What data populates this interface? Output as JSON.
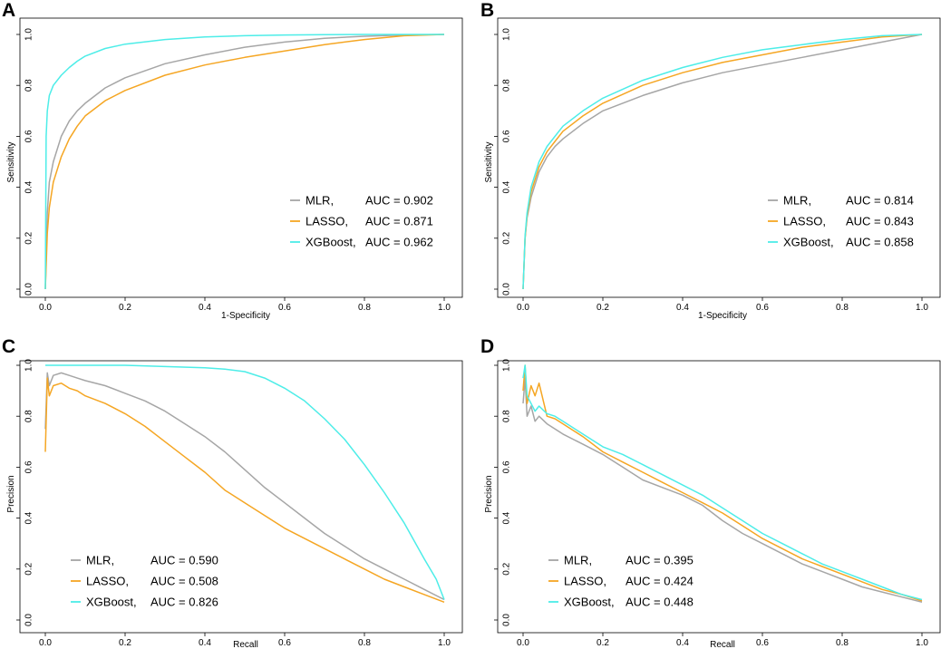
{
  "colors": {
    "MLR": "#a6a6a6",
    "LASSO": "#f5a623",
    "XGBoost": "#4dede8"
  },
  "chart_data": [
    {
      "panel": "A",
      "type": "line",
      "xlabel": "1-Specificity",
      "ylabel": "Sensitivity",
      "xlim": [
        0,
        1
      ],
      "ylim": [
        0,
        1
      ],
      "xticks": [
        "0.0",
        "0.2",
        "0.4",
        "0.6",
        "0.8",
        "1.0"
      ],
      "yticks": [
        "0.0",
        "0.2",
        "0.4",
        "0.6",
        "0.8",
        "1.0"
      ],
      "legend_position": "bottom-right",
      "series": [
        {
          "name": "MLR",
          "legend": "MLR,",
          "auc": "AUC = 0.902",
          "x": [
            0,
            0.005,
            0.01,
            0.02,
            0.04,
            0.06,
            0.08,
            0.1,
            0.15,
            0.2,
            0.3,
            0.4,
            0.5,
            0.6,
            0.7,
            0.8,
            0.9,
            1.0
          ],
          "y": [
            0,
            0.3,
            0.42,
            0.5,
            0.6,
            0.66,
            0.7,
            0.73,
            0.79,
            0.83,
            0.885,
            0.92,
            0.95,
            0.97,
            0.985,
            0.993,
            0.998,
            1.0
          ]
        },
        {
          "name": "LASSO",
          "legend": "LASSO,",
          "auc": "AUC = 0.871",
          "x": [
            0,
            0.005,
            0.01,
            0.02,
            0.04,
            0.06,
            0.08,
            0.1,
            0.15,
            0.2,
            0.3,
            0.4,
            0.5,
            0.6,
            0.7,
            0.8,
            0.9,
            1.0
          ],
          "y": [
            0,
            0.22,
            0.32,
            0.42,
            0.52,
            0.59,
            0.64,
            0.68,
            0.74,
            0.78,
            0.84,
            0.88,
            0.91,
            0.935,
            0.96,
            0.98,
            0.995,
            1.0
          ]
        },
        {
          "name": "XGBoost",
          "legend": "XGBoost,",
          "auc": "AUC = 0.962",
          "x": [
            0,
            0.002,
            0.005,
            0.01,
            0.02,
            0.04,
            0.06,
            0.08,
            0.1,
            0.15,
            0.2,
            0.3,
            0.4,
            0.5,
            0.6,
            0.7,
            0.8,
            0.9,
            1.0
          ],
          "y": [
            0,
            0.6,
            0.7,
            0.76,
            0.8,
            0.84,
            0.87,
            0.895,
            0.915,
            0.945,
            0.962,
            0.98,
            0.99,
            0.995,
            0.998,
            0.999,
            1.0,
            1.0,
            1.0
          ]
        }
      ]
    },
    {
      "panel": "B",
      "type": "line",
      "xlabel": "1-Specificity",
      "ylabel": "Sensitivity",
      "xlim": [
        0,
        1
      ],
      "ylim": [
        0,
        1
      ],
      "xticks": [
        "0.0",
        "0.2",
        "0.4",
        "0.6",
        "0.8",
        "1.0"
      ],
      "yticks": [
        "0.0",
        "0.2",
        "0.4",
        "0.6",
        "0.8",
        "1.0"
      ],
      "legend_position": "bottom-right",
      "series": [
        {
          "name": "MLR",
          "legend": "MLR,",
          "auc": "AUC = 0.814",
          "x": [
            0,
            0.005,
            0.01,
            0.02,
            0.04,
            0.06,
            0.08,
            0.1,
            0.15,
            0.2,
            0.3,
            0.4,
            0.5,
            0.6,
            0.7,
            0.8,
            0.9,
            1.0
          ],
          "y": [
            0,
            0.2,
            0.28,
            0.36,
            0.46,
            0.52,
            0.56,
            0.59,
            0.65,
            0.7,
            0.76,
            0.81,
            0.85,
            0.88,
            0.91,
            0.94,
            0.97,
            1.0
          ]
        },
        {
          "name": "LASSO",
          "legend": "LASSO,",
          "auc": "AUC = 0.843",
          "x": [
            0,
            0.005,
            0.01,
            0.02,
            0.04,
            0.06,
            0.08,
            0.1,
            0.15,
            0.2,
            0.3,
            0.4,
            0.5,
            0.6,
            0.7,
            0.8,
            0.9,
            1.0
          ],
          "y": [
            0,
            0.2,
            0.29,
            0.38,
            0.48,
            0.54,
            0.58,
            0.62,
            0.68,
            0.73,
            0.8,
            0.85,
            0.89,
            0.92,
            0.95,
            0.97,
            0.99,
            1.0
          ]
        },
        {
          "name": "XGBoost",
          "legend": "XGBoost,",
          "auc": "AUC = 0.858",
          "x": [
            0,
            0.005,
            0.01,
            0.02,
            0.04,
            0.06,
            0.08,
            0.1,
            0.15,
            0.2,
            0.3,
            0.4,
            0.5,
            0.6,
            0.7,
            0.8,
            0.9,
            1.0
          ],
          "y": [
            0,
            0.21,
            0.3,
            0.4,
            0.5,
            0.56,
            0.6,
            0.64,
            0.7,
            0.75,
            0.82,
            0.87,
            0.91,
            0.94,
            0.96,
            0.98,
            0.995,
            1.0
          ]
        }
      ]
    },
    {
      "panel": "C",
      "type": "line",
      "xlabel": "Recall",
      "ylabel": "Precision",
      "xlim": [
        0,
        1
      ],
      "ylim": [
        0,
        1
      ],
      "xticks": [
        "0.0",
        "0.2",
        "0.4",
        "0.6",
        "0.8",
        "1.0"
      ],
      "yticks": [
        "0.0",
        "0.2",
        "0.4",
        "0.6",
        "0.8",
        "1.0"
      ],
      "legend_position": "bottom-left",
      "series": [
        {
          "name": "MLR",
          "legend": "MLR,",
          "auc": "AUC = 0.590",
          "x": [
            0,
            0.005,
            0.01,
            0.02,
            0.04,
            0.06,
            0.08,
            0.1,
            0.15,
            0.2,
            0.25,
            0.3,
            0.35,
            0.4,
            0.45,
            0.5,
            0.55,
            0.6,
            0.65,
            0.7,
            0.75,
            0.8,
            0.85,
            0.9,
            0.95,
            1.0
          ],
          "y": [
            0.75,
            0.97,
            0.92,
            0.96,
            0.97,
            0.96,
            0.95,
            0.94,
            0.92,
            0.89,
            0.86,
            0.82,
            0.77,
            0.72,
            0.66,
            0.59,
            0.52,
            0.46,
            0.4,
            0.34,
            0.29,
            0.24,
            0.2,
            0.16,
            0.12,
            0.08
          ]
        },
        {
          "name": "LASSO",
          "legend": "LASSO,",
          "auc": "AUC = 0.508",
          "x": [
            0,
            0.005,
            0.01,
            0.02,
            0.04,
            0.06,
            0.08,
            0.1,
            0.15,
            0.2,
            0.25,
            0.3,
            0.35,
            0.4,
            0.45,
            0.5,
            0.55,
            0.6,
            0.65,
            0.7,
            0.75,
            0.8,
            0.85,
            0.9,
            0.95,
            1.0
          ],
          "y": [
            0.66,
            0.95,
            0.88,
            0.92,
            0.93,
            0.91,
            0.9,
            0.88,
            0.85,
            0.81,
            0.76,
            0.7,
            0.64,
            0.58,
            0.51,
            0.46,
            0.41,
            0.36,
            0.32,
            0.28,
            0.24,
            0.2,
            0.16,
            0.13,
            0.1,
            0.07
          ]
        },
        {
          "name": "XGBoost",
          "legend": "XGBoost,",
          "auc": "AUC = 0.826",
          "x": [
            0,
            0.005,
            0.01,
            0.05,
            0.1,
            0.2,
            0.3,
            0.4,
            0.45,
            0.5,
            0.55,
            0.6,
            0.65,
            0.7,
            0.75,
            0.8,
            0.85,
            0.9,
            0.95,
            0.98,
            1.0
          ],
          "y": [
            1.0,
            1.0,
            1.0,
            1.0,
            1.0,
            1.0,
            0.995,
            0.99,
            0.985,
            0.975,
            0.95,
            0.91,
            0.86,
            0.79,
            0.71,
            0.61,
            0.5,
            0.38,
            0.24,
            0.16,
            0.08
          ]
        }
      ]
    },
    {
      "panel": "D",
      "type": "line",
      "xlabel": "Recall",
      "ylabel": "Precision",
      "xlim": [
        0,
        1
      ],
      "ylim": [
        0,
        1
      ],
      "xticks": [
        "0.0",
        "0.2",
        "0.4",
        "0.6",
        "0.8",
        "1.0"
      ],
      "yticks": [
        "0.0",
        "0.2",
        "0.4",
        "0.6",
        "0.8",
        "1.0"
      ],
      "legend_position": "bottom-left",
      "series": [
        {
          "name": "MLR",
          "legend": "MLR,",
          "auc": "AUC = 0.395",
          "x": [
            0,
            0.005,
            0.01,
            0.02,
            0.03,
            0.04,
            0.06,
            0.08,
            0.1,
            0.15,
            0.2,
            0.25,
            0.3,
            0.35,
            0.4,
            0.45,
            0.5,
            0.55,
            0.6,
            0.65,
            0.7,
            0.75,
            0.8,
            0.85,
            0.9,
            0.95,
            1.0
          ],
          "y": [
            0.85,
            0.95,
            0.8,
            0.84,
            0.78,
            0.8,
            0.77,
            0.75,
            0.73,
            0.69,
            0.65,
            0.6,
            0.55,
            0.52,
            0.49,
            0.45,
            0.39,
            0.34,
            0.3,
            0.26,
            0.22,
            0.19,
            0.16,
            0.13,
            0.11,
            0.09,
            0.07
          ]
        },
        {
          "name": "LASSO",
          "legend": "LASSO,",
          "auc": "AUC = 0.424",
          "x": [
            0,
            0.005,
            0.01,
            0.02,
            0.03,
            0.04,
            0.06,
            0.08,
            0.1,
            0.15,
            0.2,
            0.25,
            0.3,
            0.35,
            0.4,
            0.45,
            0.5,
            0.55,
            0.6,
            0.65,
            0.7,
            0.75,
            0.8,
            0.85,
            0.9,
            0.95,
            1.0
          ],
          "y": [
            0.9,
            1.0,
            0.85,
            0.92,
            0.88,
            0.93,
            0.8,
            0.79,
            0.77,
            0.72,
            0.66,
            0.62,
            0.58,
            0.54,
            0.5,
            0.46,
            0.42,
            0.37,
            0.32,
            0.28,
            0.24,
            0.21,
            0.18,
            0.15,
            0.12,
            0.1,
            0.075
          ]
        },
        {
          "name": "XGBoost",
          "legend": "XGBoost,",
          "auc": "AUC = 0.448",
          "x": [
            0,
            0.005,
            0.01,
            0.02,
            0.03,
            0.04,
            0.06,
            0.08,
            0.1,
            0.15,
            0.2,
            0.25,
            0.3,
            0.35,
            0.4,
            0.45,
            0.5,
            0.55,
            0.6,
            0.65,
            0.7,
            0.75,
            0.8,
            0.85,
            0.9,
            0.95,
            1.0
          ],
          "y": [
            0.95,
            1.0,
            0.88,
            0.85,
            0.82,
            0.84,
            0.81,
            0.8,
            0.78,
            0.73,
            0.68,
            0.65,
            0.61,
            0.57,
            0.53,
            0.49,
            0.44,
            0.39,
            0.34,
            0.3,
            0.26,
            0.22,
            0.19,
            0.16,
            0.13,
            0.1,
            0.08
          ]
        }
      ]
    }
  ]
}
